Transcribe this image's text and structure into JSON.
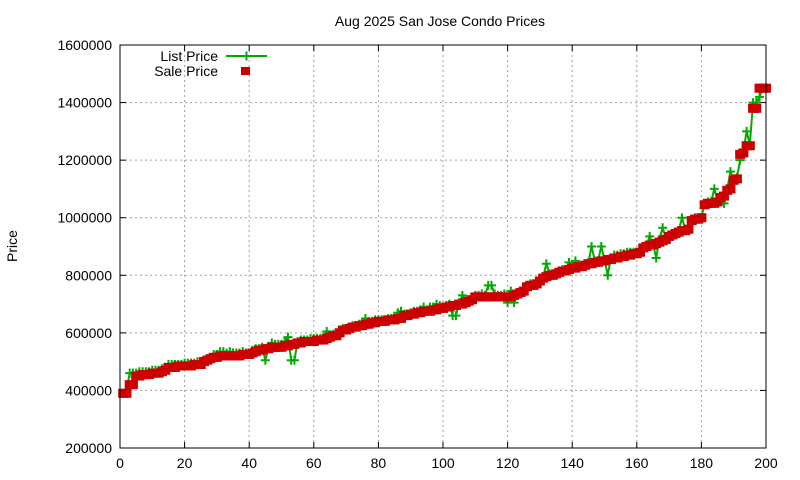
{
  "chart_data": {
    "type": "line",
    "title": "Aug 2025 San Jose Condo Prices",
    "xlabel": "",
    "ylabel": "Price",
    "xlim": [
      0,
      200
    ],
    "ylim": [
      200000,
      1600000
    ],
    "xticks": [
      0,
      20,
      40,
      60,
      80,
      100,
      120,
      140,
      160,
      180,
      200
    ],
    "yticks": [
      200000,
      400000,
      600000,
      800000,
      1000000,
      1200000,
      1400000,
      1600000
    ],
    "grid": true,
    "legend_position": "top-left",
    "x_start": 1,
    "series": [
      {
        "name": "List Price",
        "style": "linespoints",
        "color": "#00aa00",
        "marker": "plus",
        "values": [
          390000,
          400000,
          460000,
          460000,
          460000,
          465000,
          465000,
          465000,
          465000,
          470000,
          470000,
          470000,
          475000,
          480000,
          490000,
          490000,
          490000,
          490000,
          490000,
          495000,
          495000,
          495000,
          495000,
          500000,
          500000,
          505000,
          510000,
          515000,
          525000,
          525000,
          535000,
          535000,
          530000,
          535000,
          530000,
          530000,
          530000,
          535000,
          530000,
          530000,
          540000,
          545000,
          545000,
          550000,
          505000,
          550000,
          565000,
          560000,
          560000,
          560000,
          570000,
          585000,
          505000,
          505000,
          570000,
          575000,
          575000,
          575000,
          580000,
          580000,
          580000,
          580000,
          585000,
          605000,
          590000,
          595000,
          600000,
          605000,
          615000,
          615000,
          620000,
          625000,
          625000,
          630000,
          630000,
          650000,
          640000,
          640000,
          645000,
          645000,
          645000,
          645000,
          650000,
          650000,
          650000,
          670000,
          675000,
          665000,
          665000,
          670000,
          675000,
          675000,
          680000,
          690000,
          680000,
          690000,
          690000,
          700000,
          695000,
          690000,
          695000,
          700000,
          660000,
          660000,
          705000,
          730000,
          710000,
          715000,
          720000,
          730000,
          730000,
          735000,
          730000,
          765000,
          765000,
          735000,
          730000,
          730000,
          735000,
          705000,
          745000,
          705000,
          740000,
          745000,
          750000,
          765000,
          770000,
          770000,
          775000,
          785000,
          795000,
          840000,
          805000,
          805000,
          810000,
          815000,
          820000,
          820000,
          845000,
          830000,
          850000,
          835000,
          835000,
          840000,
          845000,
          900000,
          850000,
          850000,
          900000,
          855000,
          800000,
          860000,
          870000,
          870000,
          875000,
          875000,
          880000,
          880000,
          880000,
          880000,
          885000,
          900000,
          905000,
          935000,
          910000,
          860000,
          925000,
          965000,
          930000,
          940000,
          945000,
          950000,
          955000,
          1000000,
          960000,
          965000,
          995000,
          1000000,
          1000000,
          1000000,
          1050000,
          1055000,
          1055000,
          1100000,
          1060000,
          1075000,
          1050000,
          1100000,
          1160000,
          1130000,
          1140000,
          1200000,
          1230000,
          1300000,
          1255000,
          1400000,
          1400000,
          1420000,
          1450000,
          1450000
        ]
      },
      {
        "name": "Sale Price",
        "style": "points",
        "color": "#cc0000",
        "marker": "square",
        "values": [
          390000,
          390000,
          420000,
          420000,
          450000,
          450000,
          455000,
          455000,
          455000,
          460000,
          460000,
          460000,
          465000,
          470000,
          480000,
          480000,
          480000,
          485000,
          485000,
          485000,
          485000,
          485000,
          490000,
          490000,
          490000,
          500000,
          505000,
          510000,
          515000,
          515000,
          520000,
          520000,
          520000,
          520000,
          520000,
          520000,
          520000,
          525000,
          525000,
          525000,
          530000,
          535000,
          540000,
          540000,
          545000,
          545000,
          550000,
          550000,
          550000,
          550000,
          555000,
          555000,
          560000,
          560000,
          565000,
          565000,
          570000,
          570000,
          570000,
          570000,
          575000,
          575000,
          575000,
          580000,
          585000,
          590000,
          590000,
          600000,
          610000,
          610000,
          615000,
          620000,
          620000,
          625000,
          625000,
          630000,
          630000,
          635000,
          635000,
          640000,
          640000,
          640000,
          645000,
          645000,
          645000,
          650000,
          650000,
          660000,
          660000,
          665000,
          665000,
          670000,
          670000,
          675000,
          675000,
          675000,
          680000,
          680000,
          685000,
          685000,
          690000,
          690000,
          695000,
          695000,
          700000,
          700000,
          705000,
          710000,
          715000,
          725000,
          725000,
          725000,
          725000,
          725000,
          725000,
          725000,
          725000,
          725000,
          725000,
          725000,
          725000,
          730000,
          735000,
          740000,
          745000,
          760000,
          765000,
          765000,
          770000,
          780000,
          790000,
          795000,
          800000,
          800000,
          805000,
          810000,
          815000,
          815000,
          820000,
          825000,
          825000,
          830000,
          830000,
          835000,
          840000,
          840000,
          845000,
          845000,
          850000,
          850000,
          855000,
          855000,
          860000,
          860000,
          865000,
          865000,
          870000,
          870000,
          875000,
          875000,
          880000,
          895000,
          900000,
          905000,
          905000,
          910000,
          915000,
          920000,
          925000,
          935000,
          940000,
          945000,
          950000,
          955000,
          955000,
          960000,
          990000,
          995000,
          995000,
          1000000,
          1045000,
          1050000,
          1050000,
          1050000,
          1055000,
          1070000,
          1075000,
          1095000,
          1100000,
          1130000,
          1135000,
          1220000,
          1225000,
          1250000,
          1250000,
          1380000,
          1380000,
          1450000,
          1450000,
          1450000
        ]
      }
    ]
  }
}
